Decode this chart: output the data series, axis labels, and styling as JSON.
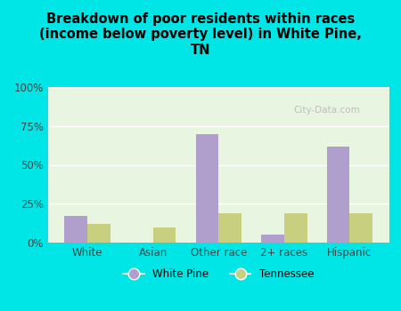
{
  "title": "Breakdown of poor residents within races\n(income below poverty level) in White Pine,\nTN",
  "categories": [
    "White",
    "Asian",
    "Other race",
    "2+ races",
    "Hispanic"
  ],
  "white_pine_values": [
    17,
    0,
    70,
    5,
    62
  ],
  "tennessee_values": [
    12,
    10,
    19,
    19,
    19
  ],
  "white_pine_color": "#b09fcc",
  "tennessee_color": "#c8d080",
  "background_outer": "#00e5e5",
  "background_inner": "#e8f5e0",
  "yticks": [
    0,
    25,
    50,
    75,
    100
  ],
  "ylabels": [
    "0%",
    "25%",
    "50%",
    "75%",
    "100%"
  ],
  "bar_width": 0.35,
  "legend_white_pine": "White Pine",
  "legend_tennessee": "Tennessee",
  "watermark": "City-Data.com"
}
